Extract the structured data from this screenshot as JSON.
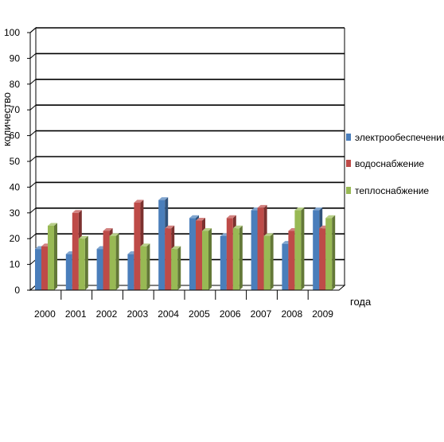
{
  "chart_data": {
    "type": "bar",
    "categories": [
      "2000",
      "2001",
      "2002",
      "2003",
      "2004",
      "2005",
      "2006",
      "2007",
      "2008",
      "2009"
    ],
    "series": [
      {
        "name": "электрообеспечение",
        "color": "#4a7ebb",
        "values": [
          16,
          14,
          16,
          14,
          35,
          28,
          21,
          31,
          18,
          31
        ]
      },
      {
        "name": "водоснабжение",
        "color": "#be4b48",
        "values": [
          17,
          30,
          23,
          34,
          24,
          27,
          28,
          32,
          23,
          24
        ]
      },
      {
        "name": "теплоснабжение",
        "color": "#98b954",
        "values": [
          25,
          20,
          21,
          17,
          16,
          23,
          24,
          21,
          31,
          28
        ]
      }
    ],
    "xlabel": "года",
    "ylabel": "количество",
    "ylim": [
      0,
      100
    ],
    "yticks": [
      0,
      10,
      20,
      30,
      40,
      50,
      60,
      70,
      80,
      90,
      100
    ],
    "grid": true,
    "legend": "right"
  }
}
